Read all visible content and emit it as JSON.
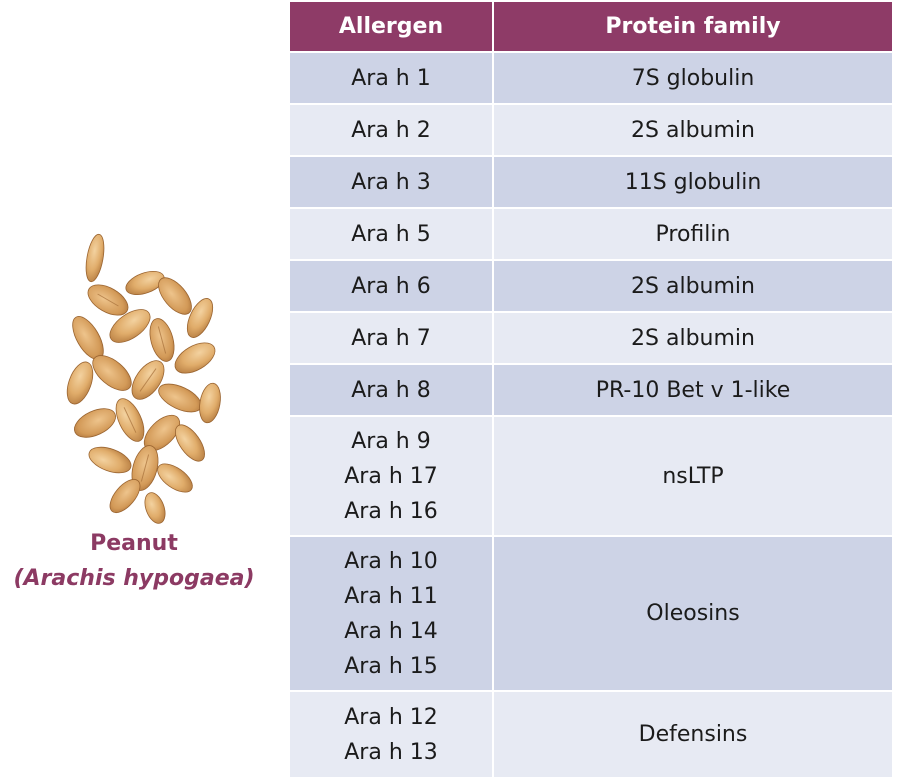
{
  "source": {
    "name": "Peanut",
    "latin_name": "(Arachis hypogaea)",
    "icon": "peanut-image"
  },
  "table": {
    "headers": [
      "Allergen",
      "Protein family"
    ],
    "rows": [
      {
        "allergens": [
          "Ara h 1"
        ],
        "family": "7S globulin"
      },
      {
        "allergens": [
          "Ara h 2"
        ],
        "family": "2S albumin"
      },
      {
        "allergens": [
          "Ara h 3"
        ],
        "family": "11S globulin"
      },
      {
        "allergens": [
          "Ara h 5"
        ],
        "family": "Profilin"
      },
      {
        "allergens": [
          "Ara h 6"
        ],
        "family": "2S albumin"
      },
      {
        "allergens": [
          "Ara h 7"
        ],
        "family": "2S albumin"
      },
      {
        "allergens": [
          "Ara h 8"
        ],
        "family": "PR-10 Bet v 1-like"
      },
      {
        "allergens": [
          "Ara h 9",
          "Ara h 17",
          "Ara h 16"
        ],
        "family": "nsLTP"
      },
      {
        "allergens": [
          "Ara h 10",
          "Ara h 11",
          "Ara h 14",
          "Ara h 15"
        ],
        "family": "Oleosins"
      },
      {
        "allergens": [
          "Ara h 12",
          "Ara h 13"
        ],
        "family": "Defensins"
      }
    ]
  },
  "colors": {
    "header_bg": "#8e3b67",
    "row_dark": "#cdd3e6",
    "row_light": "#e7eaf3",
    "caption": "#8c3a63"
  }
}
